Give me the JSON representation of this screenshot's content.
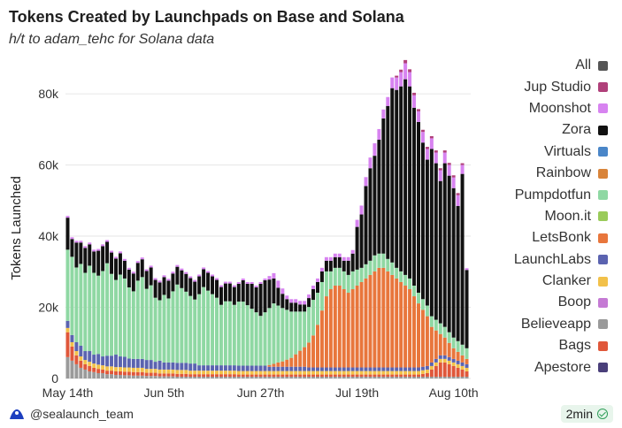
{
  "header": {
    "title": "Tokens Created by Launchpads on Base and Solana",
    "subtitle": "h/t to adam_tehc for Solana data"
  },
  "footer": {
    "handle": "@sealaunch_team",
    "badge": "2min"
  },
  "chart_data": {
    "type": "bar",
    "stacked": true,
    "ylabel": "Tokens Launched",
    "ylim": [
      0,
      85000
    ],
    "yticks": [
      0,
      20000,
      40000,
      60000,
      80000
    ],
    "ytick_labels": [
      "0",
      "20k",
      "40k",
      "60k",
      "80k"
    ],
    "xtick_labels": [
      "May 14th",
      "Jun 5th",
      "Jun 27th",
      "Jul 19th",
      "Aug 10th"
    ],
    "xtick_index": [
      0,
      22,
      44,
      66,
      88
    ],
    "x_start": "2025-05-14",
    "grid": true,
    "legend_placement": "right",
    "legend": [
      {
        "name": "All",
        "color": "#555555"
      },
      {
        "name": "Jup Studio",
        "color": "#b0407a"
      },
      {
        "name": "Moonshot",
        "color": "#d783f0"
      },
      {
        "name": "Zora",
        "color": "#111111"
      },
      {
        "name": "Virtuals",
        "color": "#4a86c8"
      },
      {
        "name": "Rainbow",
        "color": "#d9843a"
      },
      {
        "name": "Pumpdotfun",
        "color": "#8fd8a3"
      },
      {
        "name": "Moon.it",
        "color": "#9acb5a"
      },
      {
        "name": "LetsBonk",
        "color": "#e8763c"
      },
      {
        "name": "LaunchLabs",
        "color": "#5b63b0"
      },
      {
        "name": "Clanker",
        "color": "#f2c14a"
      },
      {
        "name": "Boop",
        "color": "#c57ad4"
      },
      {
        "name": "Believeapp",
        "color": "#9a9a9a"
      },
      {
        "name": "Bags",
        "color": "#e0573a"
      },
      {
        "name": "Apestore",
        "color": "#4a3f7a"
      }
    ],
    "stack_order": [
      "Believeapp",
      "Bags",
      "Clanker",
      "LaunchLabs",
      "LetsBonk",
      "Pumpdotfun",
      "Zora",
      "Moonshot",
      "Jup Studio"
    ],
    "series": [
      {
        "name": "Believeapp",
        "values": [
          6000,
          5000,
          4000,
          3000,
          2500,
          2000,
          1800,
          1500,
          1500,
          1200,
          1200,
          1000,
          1000,
          900,
          900,
          800,
          800,
          800,
          700,
          700,
          700,
          600,
          600,
          600,
          600,
          500,
          500,
          500,
          500,
          500,
          500,
          500,
          500,
          500,
          500,
          500,
          500,
          500,
          500,
          500,
          500,
          500,
          500,
          500,
          500,
          500,
          500,
          500,
          500,
          500,
          500,
          500,
          500,
          500,
          500,
          500,
          500,
          500,
          500,
          500,
          500,
          500,
          500,
          500,
          500,
          500,
          500,
          500,
          500,
          500,
          500,
          500,
          500,
          500,
          500,
          500,
          500,
          500,
          500,
          500,
          500,
          500,
          500,
          500,
          500,
          500,
          500,
          500,
          500,
          500,
          500,
          500
        ]
      },
      {
        "name": "Bags",
        "values": [
          7000,
          4000,
          2500,
          2000,
          1500,
          1500,
          1200,
          1200,
          1000,
          1000,
          1000,
          1000,
          1000,
          1000,
          1000,
          1000,
          1000,
          1000,
          900,
          900,
          900,
          800,
          800,
          800,
          800,
          800,
          800,
          800,
          700,
          700,
          700,
          700,
          700,
          700,
          700,
          700,
          700,
          700,
          700,
          600,
          600,
          600,
          600,
          600,
          600,
          600,
          600,
          600,
          600,
          600,
          600,
          600,
          600,
          600,
          600,
          600,
          600,
          600,
          600,
          600,
          600,
          600,
          600,
          600,
          600,
          600,
          600,
          600,
          600,
          600,
          600,
          600,
          600,
          600,
          600,
          600,
          600,
          600,
          600,
          600,
          600,
          800,
          1000,
          2000,
          3000,
          4000,
          4000,
          3500,
          3000,
          2500,
          2000,
          1500
        ]
      },
      {
        "name": "Clanker",
        "values": [
          1200,
          1200,
          1200,
          1200,
          1200,
          1200,
          1200,
          1200,
          1200,
          1200,
          1200,
          1200,
          1200,
          1200,
          1200,
          1200,
          1200,
          1200,
          1100,
          1100,
          1100,
          1100,
          1100,
          1100,
          1100,
          1100,
          1100,
          1100,
          1000,
          1000,
          1000,
          1000,
          1000,
          1000,
          1000,
          1000,
          1000,
          1000,
          1000,
          1000,
          1000,
          1000,
          1000,
          1000,
          1000,
          1000,
          1000,
          1000,
          1000,
          1000,
          1000,
          1000,
          1000,
          1000,
          1000,
          1000,
          1000,
          1000,
          1000,
          1000,
          1000,
          1000,
          1000,
          1000,
          1000,
          1000,
          1000,
          1000,
          1000,
          1000,
          1000,
          1000,
          1000,
          1000,
          1000,
          1000,
          1000,
          1000,
          1000,
          1000,
          1000,
          1000,
          1000,
          1000,
          1000,
          1000,
          1000,
          1000,
          1000,
          1000,
          1000,
          1000
        ]
      },
      {
        "name": "LaunchLabs",
        "values": [
          2000,
          2000,
          2500,
          3000,
          2500,
          3000,
          2500,
          3000,
          2500,
          3000,
          3000,
          3500,
          3000,
          3000,
          2500,
          2500,
          2500,
          2500,
          2500,
          2500,
          2000,
          2500,
          2000,
          2000,
          2000,
          2000,
          2000,
          2000,
          2000,
          2000,
          1500,
          1500,
          1500,
          1500,
          1500,
          1500,
          1500,
          1500,
          1500,
          1500,
          1500,
          1500,
          1500,
          1500,
          1500,
          1500,
          1200,
          1200,
          1200,
          1200,
          1200,
          1200,
          1200,
          1200,
          1200,
          1000,
          1000,
          1000,
          1000,
          1000,
          1000,
          1000,
          1000,
          1000,
          1000,
          1000,
          1000,
          1000,
          1000,
          1000,
          1000,
          1000,
          1000,
          1000,
          1000,
          1000,
          1000,
          1000,
          1000,
          1000,
          1000,
          1000,
          1000,
          1000,
          1000,
          1000,
          1000,
          1000,
          1000,
          1000,
          1000,
          1000
        ]
      },
      {
        "name": "LetsBonk",
        "values": [
          0,
          0,
          0,
          0,
          0,
          0,
          0,
          0,
          0,
          0,
          0,
          0,
          0,
          0,
          0,
          0,
          0,
          0,
          0,
          0,
          0,
          0,
          0,
          0,
          0,
          0,
          0,
          0,
          0,
          0,
          0,
          0,
          0,
          0,
          0,
          0,
          0,
          0,
          0,
          0,
          0,
          0,
          0,
          0,
          0,
          0,
          500,
          800,
          1200,
          1500,
          2000,
          2500,
          3500,
          4500,
          5500,
          7000,
          9000,
          12000,
          16000,
          20000,
          22000,
          23000,
          23000,
          22000,
          21000,
          22000,
          23000,
          24000,
          25000,
          26000,
          27000,
          28000,
          28000,
          27000,
          26000,
          25000,
          24000,
          23000,
          22000,
          20000,
          18000,
          16000,
          14000,
          10000,
          8000,
          6000,
          5000,
          4000,
          3000,
          2500,
          2000,
          1500
        ]
      },
      {
        "name": "Pumpdotfun",
        "values": [
          20000,
          22000,
          21000,
          23000,
          22000,
          24000,
          23000,
          22000,
          24000,
          26000,
          23000,
          21000,
          23000,
          22000,
          20000,
          19000,
          22000,
          23000,
          20000,
          21000,
          18000,
          17000,
          19000,
          18000,
          20000,
          22000,
          21000,
          20000,
          19000,
          18000,
          20000,
          22000,
          21000,
          20000,
          19000,
          17000,
          18000,
          18000,
          17000,
          18000,
          18000,
          17000,
          16000,
          15000,
          14000,
          15000,
          16000,
          17000,
          16000,
          15000,
          14000,
          13000,
          12000,
          11000,
          10000,
          10000,
          10000,
          9000,
          8000,
          7000,
          5000,
          5000,
          5000,
          5000,
          5000,
          5000,
          4500,
          4000,
          4000,
          4000,
          4500,
          4000,
          4000,
          3500,
          3500,
          3000,
          3000,
          3000,
          3000,
          3000,
          3000,
          3000,
          3000,
          3000,
          3000,
          3000,
          3000,
          3000,
          3000,
          3000,
          3000,
          3000
        ]
      },
      {
        "name": "Zora",
        "values": [
          9000,
          5000,
          7000,
          6000,
          7000,
          6000,
          6000,
          7000,
          7000,
          6000,
          6000,
          6000,
          6000,
          5000,
          5000,
          5000,
          5000,
          5000,
          5000,
          5000,
          5000,
          5000,
          5000,
          5000,
          5000,
          5000,
          5000,
          5000,
          5000,
          5000,
          5000,
          5000,
          5000,
          5000,
          5000,
          5000,
          5000,
          5000,
          5000,
          5000,
          6000,
          6000,
          7000,
          7000,
          9000,
          9000,
          8000,
          7000,
          5000,
          4000,
          3000,
          2500,
          2500,
          2000,
          2000,
          2500,
          3000,
          3000,
          3000,
          3000,
          3000,
          3000,
          3000,
          3000,
          4000,
          5000,
          12000,
          15000,
          22000,
          26000,
          28000,
          32000,
          38000,
          43000,
          49000,
          50000,
          52000,
          55000,
          54000,
          50000,
          48000,
          44000,
          41000,
          47000,
          44000,
          40000,
          46000,
          44000,
          42000,
          38000,
          48000,
          22000
        ]
      },
      {
        "name": "Moonshot",
        "values": [
          500,
          500,
          500,
          500,
          500,
          500,
          500,
          500,
          500,
          500,
          500,
          500,
          500,
          500,
          500,
          500,
          500,
          500,
          500,
          500,
          500,
          500,
          500,
          500,
          500,
          500,
          500,
          500,
          500,
          500,
          500,
          500,
          500,
          500,
          500,
          500,
          500,
          500,
          500,
          500,
          500,
          500,
          500,
          500,
          500,
          500,
          1000,
          1500,
          2000,
          1500,
          1000,
          1000,
          1000,
          1000,
          1000,
          1000,
          1000,
          1000,
          1000,
          1000,
          1000,
          1000,
          1000,
          1000,
          1000,
          1000,
          2000,
          2500,
          2500,
          3000,
          3500,
          3000,
          2500,
          2500,
          3000,
          3500,
          4000,
          4500,
          4000,
          3500,
          3000,
          3000,
          3000,
          3000,
          3000,
          3000,
          3000,
          3000,
          3000,
          3000,
          2500,
          500
        ]
      },
      {
        "name": "Jup Studio",
        "values": [
          0,
          0,
          0,
          0,
          0,
          0,
          0,
          0,
          0,
          0,
          0,
          0,
          0,
          0,
          0,
          0,
          0,
          0,
          0,
          0,
          0,
          0,
          0,
          0,
          0,
          0,
          0,
          0,
          0,
          0,
          0,
          0,
          0,
          0,
          0,
          0,
          0,
          0,
          0,
          0,
          0,
          0,
          0,
          0,
          0,
          0,
          0,
          0,
          0,
          0,
          0,
          0,
          0,
          0,
          0,
          0,
          0,
          0,
          0,
          0,
          0,
          0,
          0,
          0,
          0,
          0,
          0,
          0,
          0,
          0,
          0,
          0,
          0,
          0,
          0,
          500,
          700,
          900,
          800,
          700,
          600,
          600,
          600,
          600,
          600,
          600,
          600,
          600,
          600,
          600,
          500,
          0
        ]
      }
    ]
  }
}
